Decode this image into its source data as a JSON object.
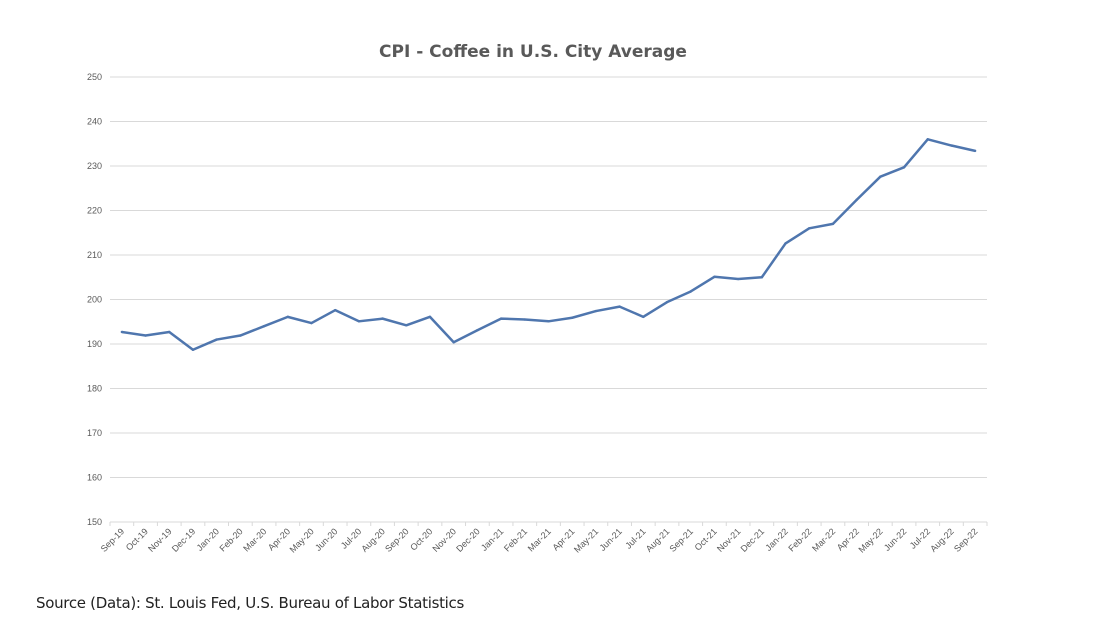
{
  "chart_data": {
    "type": "line",
    "title": "CPI - Coffee in U.S. City Average",
    "xlabel": "",
    "ylabel": "",
    "ylim": [
      150,
      250
    ],
    "yticks": [
      150,
      160,
      170,
      180,
      190,
      200,
      210,
      220,
      230,
      240,
      250
    ],
    "grid": true,
    "legend": "none",
    "line_color": "#4f76ae",
    "categories": [
      "Sep-19",
      "Oct-19",
      "Nov-19",
      "Dec-19",
      "Jan-20",
      "Feb-20",
      "Mar-20",
      "Apr-20",
      "May-20",
      "Jun-20",
      "Jul-20",
      "Aug-20",
      "Sep-20",
      "Oct-20",
      "Nov-20",
      "Dec-20",
      "Jan-21",
      "Feb-21",
      "Mar-21",
      "Apr-21",
      "May-21",
      "Jun-21",
      "Jul-21",
      "Aug-21",
      "Sep-21",
      "Oct-21",
      "Nov-21",
      "Dec-21",
      "Jan-22",
      "Feb-22",
      "Mar-22",
      "Apr-22",
      "May-22",
      "Jun-22",
      "Jul-22",
      "Aug-22",
      "Sep-22"
    ],
    "series": [
      {
        "values": [
          192.7,
          191.9,
          192.7,
          188.7,
          191.0,
          191.9,
          194.0,
          196.1,
          194.7,
          197.6,
          195.1,
          195.7,
          194.2,
          196.1,
          190.4,
          193.1,
          195.7,
          195.5,
          195.1,
          195.9,
          197.4,
          198.4,
          196.1,
          199.4,
          201.8,
          205.1,
          204.6,
          205.0,
          212.6,
          216.0,
          217.0,
          222.4,
          227.6,
          229.7,
          236.0,
          234.6,
          233.4
        ]
      }
    ]
  },
  "source": "Source (Data): St. Louis Fed, U.S. Bureau of Labor Statistics"
}
